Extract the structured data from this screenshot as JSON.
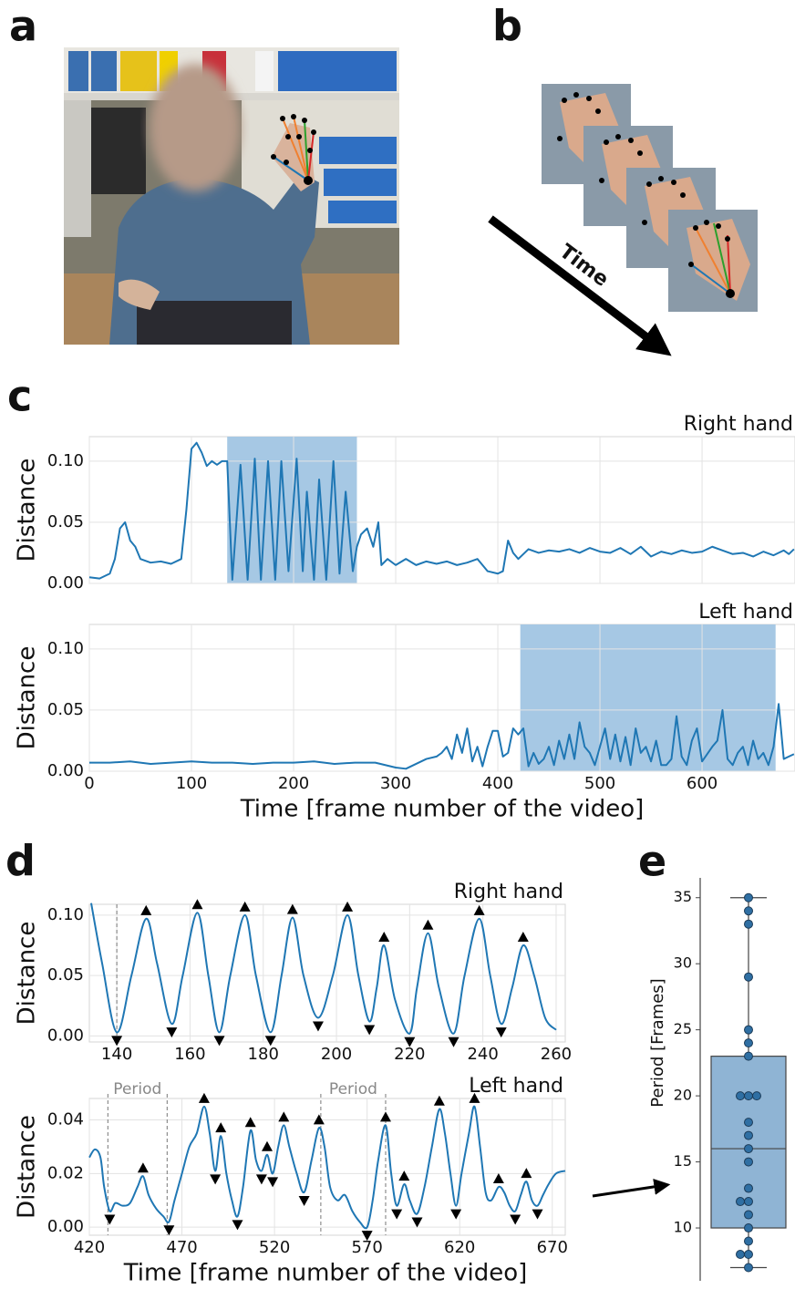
{
  "panel_labels": [
    "a",
    "b",
    "c",
    "d",
    "e"
  ],
  "arrow_label": "Time",
  "chart_data": [
    {
      "type": "line",
      "title": "Right hand",
      "ylabel": "Distance",
      "color": "#1f77b4",
      "grid": true,
      "show_xtick_labels": false,
      "smooth": false,
      "highlight": [
        135,
        262
      ],
      "highlight_color": "#a6c8e4",
      "xlim": [
        0,
        691
      ],
      "ylim": [
        0,
        0.12
      ],
      "xticks": [
        0,
        100,
        200,
        300,
        400,
        500,
        600
      ],
      "yticks": [
        {
          "value": 0,
          "label": "0.00"
        },
        {
          "value": 0.05,
          "label": "0.05"
        },
        {
          "value": 0.1,
          "label": "0.10"
        }
      ],
      "x": [
        0,
        10,
        20,
        25,
        30,
        35,
        40,
        45,
        50,
        60,
        70,
        80,
        90,
        95,
        100,
        105,
        110,
        115,
        120,
        125,
        130,
        135,
        140,
        148,
        155,
        162,
        168,
        175,
        182,
        188,
        195,
        203,
        209,
        213,
        220,
        225,
        232,
        239,
        245,
        251,
        258,
        262,
        266,
        272,
        278,
        283,
        286,
        292,
        300,
        310,
        320,
        330,
        340,
        350,
        360,
        370,
        380,
        390,
        400,
        405,
        410,
        415,
        420,
        430,
        440,
        450,
        460,
        470,
        480,
        490,
        500,
        510,
        520,
        530,
        540,
        550,
        560,
        570,
        580,
        590,
        600,
        610,
        620,
        630,
        640,
        650,
        660,
        670,
        680,
        685,
        690
      ],
      "values": [
        0.005,
        0.004,
        0.008,
        0.02,
        0.045,
        0.05,
        0.035,
        0.03,
        0.02,
        0.017,
        0.018,
        0.016,
        0.02,
        0.06,
        0.11,
        0.115,
        0.107,
        0.096,
        0.1,
        0.097,
        0.1,
        0.1,
        0.003,
        0.097,
        0.003,
        0.102,
        0.003,
        0.1,
        0.003,
        0.1,
        0.01,
        0.102,
        0.01,
        0.075,
        0.003,
        0.085,
        0.003,
        0.1,
        0.008,
        0.075,
        0.01,
        0.03,
        0.04,
        0.045,
        0.03,
        0.05,
        0.015,
        0.02,
        0.015,
        0.02,
        0.015,
        0.018,
        0.016,
        0.018,
        0.015,
        0.017,
        0.02,
        0.01,
        0.008,
        0.01,
        0.035,
        0.025,
        0.02,
        0.028,
        0.025,
        0.027,
        0.026,
        0.028,
        0.025,
        0.029,
        0.026,
        0.025,
        0.029,
        0.024,
        0.03,
        0.022,
        0.026,
        0.024,
        0.027,
        0.025,
        0.026,
        0.03,
        0.027,
        0.024,
        0.025,
        0.022,
        0.026,
        0.023,
        0.027,
        0.024,
        0.028
      ]
    },
    {
      "type": "line",
      "title": "Left hand",
      "ylabel": "Distance",
      "xlabel": "Time [frame number of the video]",
      "color": "#1f77b4",
      "grid": true,
      "show_xtick_labels": true,
      "smooth": false,
      "highlight": [
        422,
        672
      ],
      "highlight_color": "#a6c8e4",
      "xlim": [
        0,
        691
      ],
      "ylim": [
        0,
        0.12
      ],
      "xticks": [
        0,
        100,
        200,
        300,
        400,
        500,
        600
      ],
      "yticks": [
        {
          "value": 0,
          "label": "0.00"
        },
        {
          "value": 0.05,
          "label": "0.05"
        },
        {
          "value": 0.1,
          "label": "0.10"
        }
      ],
      "x": [
        0,
        20,
        40,
        60,
        80,
        100,
        120,
        140,
        160,
        180,
        200,
        220,
        240,
        260,
        280,
        300,
        310,
        320,
        330,
        340,
        345,
        350,
        355,
        360,
        365,
        370,
        375,
        380,
        385,
        390,
        395,
        400,
        405,
        410,
        415,
        420,
        425,
        430,
        435,
        440,
        445,
        450,
        455,
        460,
        465,
        470,
        475,
        480,
        485,
        490,
        495,
        500,
        505,
        510,
        515,
        520,
        525,
        530,
        535,
        540,
        545,
        550,
        555,
        560,
        565,
        570,
        575,
        580,
        585,
        590,
        595,
        600,
        610,
        615,
        620,
        625,
        630,
        635,
        640,
        645,
        650,
        655,
        660,
        665,
        670,
        675,
        680,
        685,
        690
      ],
      "values": [
        0.007,
        0.007,
        0.008,
        0.006,
        0.007,
        0.008,
        0.007,
        0.007,
        0.006,
        0.007,
        0.007,
        0.008,
        0.006,
        0.007,
        0.007,
        0.003,
        0.002,
        0.006,
        0.01,
        0.012,
        0.015,
        0.02,
        0.01,
        0.03,
        0.015,
        0.035,
        0.008,
        0.02,
        0.004,
        0.02,
        0.033,
        0.033,
        0.012,
        0.015,
        0.035,
        0.03,
        0.035,
        0.004,
        0.015,
        0.006,
        0.01,
        0.02,
        0.005,
        0.025,
        0.01,
        0.03,
        0.01,
        0.04,
        0.02,
        0.015,
        0.005,
        0.02,
        0.035,
        0.01,
        0.03,
        0.008,
        0.028,
        0.005,
        0.035,
        0.015,
        0.02,
        0.008,
        0.025,
        0.005,
        0.005,
        0.01,
        0.045,
        0.012,
        0.005,
        0.025,
        0.035,
        0.008,
        0.02,
        0.025,
        0.05,
        0.01,
        0.005,
        0.015,
        0.02,
        0.005,
        0.025,
        0.01,
        0.015,
        0.005,
        0.02,
        0.055,
        0.01,
        0.012,
        0.014
      ]
    },
    {
      "type": "line",
      "title": "Right hand",
      "ylabel": "Distance",
      "color": "#1f77b4",
      "grid": true,
      "show_xtick_labels": true,
      "smooth": true,
      "xlim": [
        132.5,
        262.5
      ],
      "ylim": [
        -0.005,
        0.109
      ],
      "xticks": [
        140,
        160,
        180,
        200,
        220,
        240,
        260
      ],
      "yticks": [
        {
          "value": 0,
          "label": "0.00"
        },
        {
          "value": 0.05,
          "label": "0.05"
        },
        {
          "value": 0.1,
          "label": "0.10"
        }
      ],
      "vlines": [
        140
      ],
      "x": [
        133,
        136,
        140,
        144,
        148,
        151,
        155,
        158,
        162,
        165,
        168,
        171,
        175,
        178,
        182,
        185,
        188,
        191,
        195,
        199,
        203,
        206,
        209,
        211,
        213,
        216,
        220,
        222,
        225,
        228,
        232,
        235,
        239,
        242,
        245,
        248,
        251,
        254,
        257,
        260
      ],
      "values": [
        0.11,
        0.06,
        0.003,
        0.05,
        0.097,
        0.06,
        0.01,
        0.05,
        0.102,
        0.05,
        0.003,
        0.05,
        0.1,
        0.05,
        0.003,
        0.05,
        0.098,
        0.05,
        0.015,
        0.05,
        0.1,
        0.05,
        0.012,
        0.04,
        0.075,
        0.03,
        0.002,
        0.04,
        0.085,
        0.04,
        0.002,
        0.05,
        0.097,
        0.05,
        0.01,
        0.04,
        0.075,
        0.05,
        0.015,
        0.005
      ],
      "peaks": {
        "x": [
          148,
          162,
          175,
          188,
          203,
          213,
          225,
          239,
          251
        ],
        "values": [
          0.097,
          0.102,
          0.1,
          0.098,
          0.1,
          0.075,
          0.085,
          0.097,
          0.075
        ]
      },
      "troughs": {
        "x": [
          140,
          155,
          168,
          182,
          195,
          209,
          220,
          232,
          245
        ],
        "values": [
          0.003,
          0.01,
          0.003,
          0.003,
          0.015,
          0.012,
          0.002,
          0.002,
          0.01
        ]
      }
    },
    {
      "type": "line",
      "title": "Left hand",
      "ylabel": "Distance",
      "xlabel": "Time [frame number of the video]",
      "color": "#1f77b4",
      "grid": true,
      "show_xtick_labels": true,
      "smooth": true,
      "xlim": [
        420,
        677
      ],
      "ylim": [
        -0.003,
        0.048
      ],
      "xticks": [
        420,
        470,
        520,
        570,
        620,
        670
      ],
      "yticks": [
        {
          "value": 0,
          "label": "0.00"
        },
        {
          "value": 0.02,
          "label": "0.02"
        },
        {
          "value": 0.04,
          "label": "0.04"
        }
      ],
      "periods": [
        {
          "label": "Period",
          "x": [
            430,
            462
          ]
        },
        {
          "label": "Period",
          "x": [
            545,
            580
          ]
        }
      ],
      "x": [
        420,
        423,
        426,
        428,
        431,
        434,
        438,
        442,
        446,
        449,
        452,
        456,
        460,
        463,
        466,
        470,
        474,
        478,
        482,
        485,
        488,
        491,
        494,
        497,
        500,
        503,
        507,
        510,
        513,
        516,
        519,
        522,
        525,
        528,
        532,
        536,
        540,
        544,
        547,
        550,
        554,
        558,
        562,
        566,
        570,
        573,
        576,
        580,
        583,
        586,
        590,
        593,
        597,
        601,
        605,
        609,
        612,
        615,
        618,
        621,
        625,
        628,
        631,
        634,
        637,
        641,
        644,
        647,
        650,
        653,
        656,
        659,
        662,
        665,
        668,
        672,
        677
      ],
      "values": [
        0.026,
        0.029,
        0.026,
        0.015,
        0.006,
        0.009,
        0.008,
        0.009,
        0.015,
        0.019,
        0.012,
        0.007,
        0.004,
        0.002,
        0.01,
        0.02,
        0.03,
        0.035,
        0.045,
        0.035,
        0.021,
        0.034,
        0.02,
        0.01,
        0.004,
        0.015,
        0.036,
        0.025,
        0.021,
        0.027,
        0.02,
        0.03,
        0.038,
        0.03,
        0.02,
        0.013,
        0.025,
        0.037,
        0.03,
        0.015,
        0.01,
        0.012,
        0.006,
        0.002,
        0,
        0.01,
        0.025,
        0.038,
        0.02,
        0.008,
        0.016,
        0.01,
        0.005,
        0.015,
        0.03,
        0.044,
        0.035,
        0.02,
        0.008,
        0.02,
        0.035,
        0.045,
        0.03,
        0.013,
        0.01,
        0.015,
        0.013,
        0.008,
        0.006,
        0.012,
        0.017,
        0.01,
        0.008,
        0.012,
        0.016,
        0.02,
        0.021
      ],
      "peaks": {
        "x": [
          449,
          482,
          491,
          507,
          516,
          525,
          544,
          580,
          590,
          609,
          628,
          641,
          656
        ],
        "values": [
          0.019,
          0.045,
          0.034,
          0.036,
          0.027,
          0.038,
          0.037,
          0.038,
          0.016,
          0.044,
          0.045,
          0.015,
          0.017
        ]
      },
      "troughs": {
        "x": [
          431,
          463,
          488,
          500,
          513,
          519,
          536,
          570,
          586,
          597,
          618,
          650,
          662
        ],
        "values": [
          0.006,
          0.002,
          0.021,
          0.004,
          0.021,
          0.02,
          0.013,
          0,
          0.008,
          0.005,
          0.008,
          0.006,
          0.008
        ]
      }
    },
    {
      "type": "box",
      "ylabel": "Period [Frames]",
      "color": "#8fb4d4",
      "point_color": "#2f6fa3",
      "ylim": [
        6,
        36.5
      ],
      "yticks": [
        10,
        15,
        20,
        25,
        30,
        35
      ],
      "box": {
        "min": 7,
        "q1": 10,
        "median": 16,
        "q3": 23,
        "max": 35
      },
      "points": [
        35,
        34,
        33,
        29,
        25,
        24,
        23,
        20,
        20,
        20,
        18,
        17,
        16,
        15,
        13,
        12,
        12,
        11,
        10,
        9,
        8,
        8,
        7
      ]
    }
  ]
}
